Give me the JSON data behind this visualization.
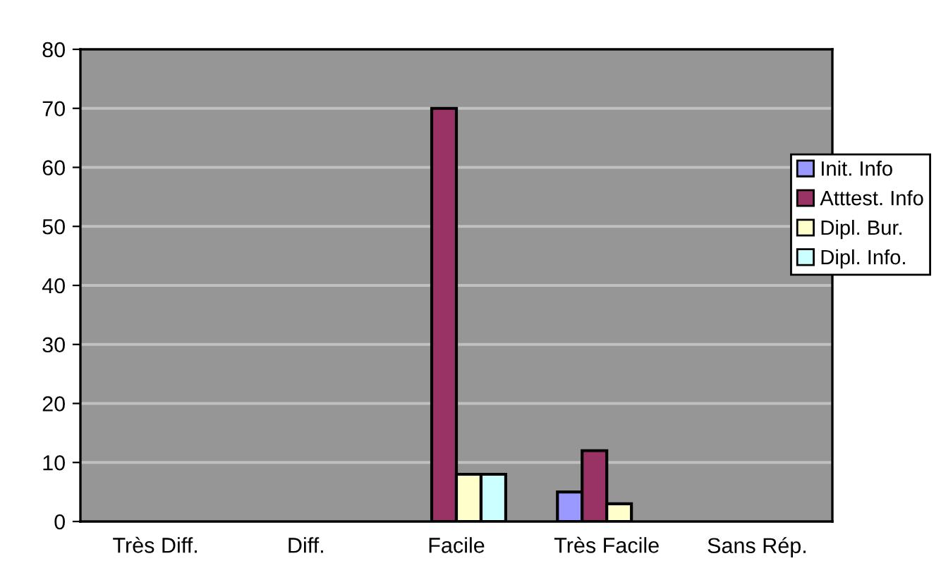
{
  "chart_data": {
    "type": "bar",
    "categories": [
      "Très Diff.",
      "Diff.",
      "Facile",
      "Très Facile",
      "Sans Rép."
    ],
    "series": [
      {
        "name": "Init. Info",
        "color": "#9999ff",
        "values": [
          0,
          0,
          0,
          5,
          0
        ]
      },
      {
        "name": "Atttest. Info",
        "color": "#993366",
        "values": [
          0,
          0,
          70,
          12,
          0
        ]
      },
      {
        "name": "Dipl. Bur.",
        "color": "#ffffcc",
        "values": [
          0,
          0,
          8,
          3,
          0
        ]
      },
      {
        "name": "Dipl. Info.",
        "color": "#ccffff",
        "values": [
          0,
          0,
          8,
          0,
          0
        ]
      }
    ],
    "ylim": [
      0,
      80
    ],
    "yticks": [
      0,
      10,
      20,
      30,
      40,
      50,
      60,
      70,
      80
    ],
    "grid": "y",
    "legend": "right"
  }
}
